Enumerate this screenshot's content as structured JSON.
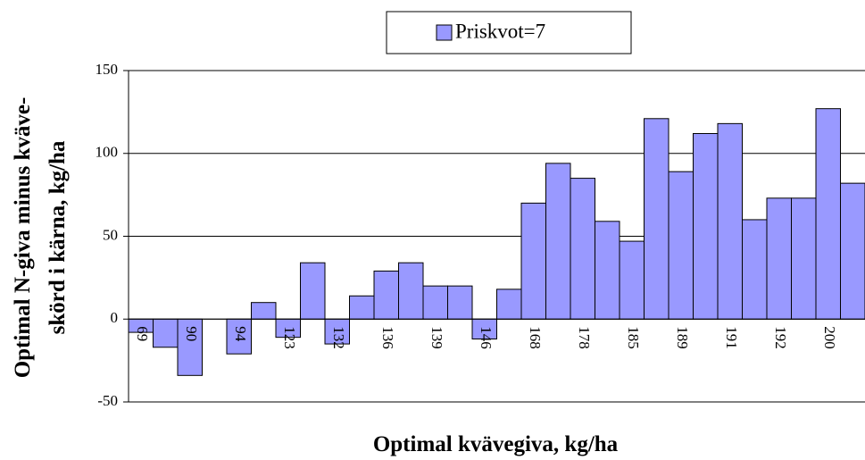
{
  "chart_data": {
    "type": "bar",
    "legend": "upper center",
    "xlabel": "Optimal kvävegiva, kg/ha",
    "ylabel": [
      "Optimal N-giva minus kväve-",
      "skörd i kärna, kg/ha"
    ],
    "categories": [
      "69",
      null,
      "90",
      null,
      "94",
      null,
      "123",
      null,
      "132",
      null,
      "136",
      null,
      "139",
      null,
      "146",
      null,
      "168",
      null,
      "178",
      null,
      "185",
      null,
      "189",
      null,
      "191",
      null,
      "192",
      null,
      "200",
      null
    ],
    "series": [
      {
        "name": "Priskvot=7",
        "color": "#9999ff",
        "values": [
          -8,
          -17,
          -34,
          null,
          -21,
          10,
          -11,
          34,
          -15,
          14,
          29,
          34,
          20,
          20,
          -12,
          18,
          70,
          94,
          85,
          59,
          47,
          121,
          89,
          112,
          118,
          60,
          73,
          73,
          127,
          82
        ]
      }
    ],
    "ylim": [
      -50,
      150
    ],
    "yticks": [
      -50,
      0,
      50,
      100,
      150
    ],
    "grid": true
  }
}
